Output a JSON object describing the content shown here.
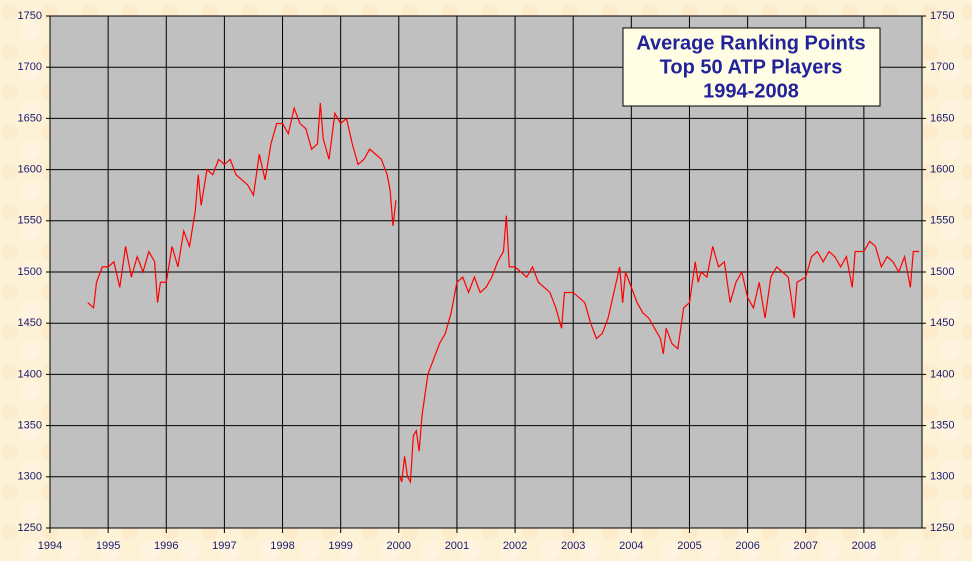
{
  "chart_data": {
    "type": "line",
    "title_lines": [
      "Average Ranking Points",
      "Top 50 ATP Players",
      "1994-2008"
    ],
    "x": [
      1994.65,
      1994.75,
      1994.8,
      1994.9,
      1995.0,
      1995.1,
      1995.2,
      1995.3,
      1995.4,
      1995.5,
      1995.6,
      1995.7,
      1995.8,
      1995.85,
      1995.9,
      1996.0,
      1996.1,
      1996.2,
      1996.3,
      1996.4,
      1996.5,
      1996.55,
      1996.6,
      1996.7,
      1996.8,
      1996.9,
      1997.0,
      1997.1,
      1997.2,
      1997.3,
      1997.4,
      1997.5,
      1997.6,
      1997.7,
      1997.8,
      1997.9,
      1998.0,
      1998.1,
      1998.2,
      1998.3,
      1998.4,
      1998.5,
      1998.6,
      1998.65,
      1998.7,
      1998.8,
      1998.9,
      1999.0,
      1999.1,
      1999.2,
      1999.3,
      1999.4,
      1999.5,
      1999.6,
      1999.7,
      1999.8,
      1999.85,
      1999.9,
      1999.95,
      2000.0,
      2000.02,
      2000.05,
      2000.1,
      2000.15,
      2000.2,
      2000.25,
      2000.3,
      2000.35,
      2000.4,
      2000.5,
      2000.6,
      2000.7,
      2000.8,
      2000.9,
      2001.0,
      2001.1,
      2001.2,
      2001.3,
      2001.4,
      2001.5,
      2001.6,
      2001.7,
      2001.8,
      2001.85,
      2001.9,
      2002.0,
      2002.1,
      2002.2,
      2002.3,
      2002.4,
      2002.5,
      2002.6,
      2002.7,
      2002.8,
      2002.85,
      2003.0,
      2003.1,
      2003.2,
      2003.3,
      2003.4,
      2003.5,
      2003.6,
      2003.7,
      2003.8,
      2003.85,
      2003.9,
      2004.0,
      2004.1,
      2004.2,
      2004.3,
      2004.4,
      2004.5,
      2004.55,
      2004.6,
      2004.7,
      2004.8,
      2004.9,
      2005.0,
      2005.1,
      2005.15,
      2005.2,
      2005.3,
      2005.4,
      2005.5,
      2005.6,
      2005.7,
      2005.8,
      2005.9,
      2006.0,
      2006.1,
      2006.2,
      2006.3,
      2006.4,
      2006.5,
      2006.6,
      2006.7,
      2006.8,
      2006.85,
      2007.0,
      2007.1,
      2007.2,
      2007.3,
      2007.4,
      2007.5,
      2007.6,
      2007.7,
      2007.8,
      2007.85,
      2008.0,
      2008.1,
      2008.2,
      2008.3,
      2008.4,
      2008.5,
      2008.6,
      2008.7,
      2008.8,
      2008.85,
      2008.95
    ],
    "series": [
      {
        "color": "#ff0000",
        "values": [
          1470,
          1465,
          1490,
          1505,
          1505,
          1510,
          1485,
          1525,
          1495,
          1515,
          1500,
          1520,
          1510,
          1470,
          1490,
          1490,
          1525,
          1505,
          1540,
          1525,
          1560,
          1595,
          1565,
          1600,
          1595,
          1610,
          1605,
          1610,
          1595,
          1590,
          1585,
          1575,
          1615,
          1590,
          1625,
          1645,
          1645,
          1635,
          1660,
          1645,
          1640,
          1620,
          1625,
          1665,
          1630,
          1610,
          1655,
          1645,
          1650,
          1625,
          1605,
          1610,
          1620,
          1615,
          1610,
          1595,
          1580,
          1545,
          1570,
          null,
          1300,
          1295,
          1320,
          1300,
          1295,
          1340,
          1345,
          1325,
          1360,
          1400,
          1415,
          1430,
          1440,
          1460,
          1490,
          1495,
          1480,
          1495,
          1480,
          1485,
          1495,
          1510,
          1520,
          1555,
          1505,
          1505,
          1500,
          1495,
          1505,
          1490,
          1485,
          1480,
          1465,
          1445,
          1480,
          1480,
          1475,
          1470,
          1450,
          1435,
          1440,
          1455,
          1480,
          1505,
          1470,
          1500,
          1485,
          1470,
          1460,
          1455,
          1445,
          1435,
          1420,
          1445,
          1430,
          1425,
          1465,
          1470,
          1510,
          1490,
          1500,
          1495,
          1525,
          1505,
          1510,
          1470,
          1490,
          1500,
          1475,
          1465,
          1490,
          1455,
          1495,
          1505,
          1500,
          1495,
          1455,
          1490,
          1495,
          1515,
          1520,
          1510,
          1520,
          1515,
          1505,
          1515,
          1485,
          1520,
          1520,
          1530,
          1525,
          1505,
          1515,
          1510,
          1500,
          1515,
          1485,
          1520,
          1520
        ]
      }
    ],
    "xlim": [
      1994,
      2009
    ],
    "xticks": [
      1994,
      1995,
      1996,
      1997,
      1998,
      1999,
      2000,
      2001,
      2002,
      2003,
      2004,
      2005,
      2006,
      2007,
      2008
    ],
    "ylim": [
      1250,
      1750
    ],
    "yticks": [
      1250,
      1300,
      1350,
      1400,
      1450,
      1500,
      1550,
      1600,
      1650,
      1700,
      1750
    ],
    "y2lim": [
      1250,
      1750
    ],
    "y2ticks": [
      1250,
      1300,
      1350,
      1400,
      1450,
      1500,
      1550,
      1600,
      1650,
      1700,
      1750
    ],
    "grid": true
  }
}
